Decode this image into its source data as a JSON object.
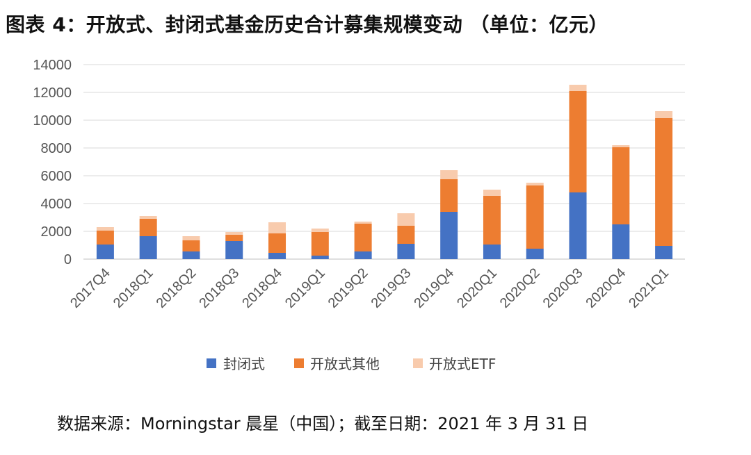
{
  "figure_title": "图表 4：开放式、封闭式基金历史合计募集规模变动 （单位：亿元）",
  "source_note": "数据来源：Morningstar 晨星（中国）；截至日期：2021 年 3 月 31 日",
  "chart_data": {
    "type": "bar",
    "stacked": true,
    "categories": [
      "2017Q4",
      "2018Q1",
      "2018Q2",
      "2018Q3",
      "2018Q4",
      "2019Q1",
      "2019Q2",
      "2019Q3",
      "2019Q4",
      "2020Q1",
      "2020Q2",
      "2020Q3",
      "2020Q4",
      "2021Q1"
    ],
    "series": [
      {
        "name": "封闭式",
        "color": "#4472C4",
        "values": [
          1050,
          1650,
          550,
          1300,
          450,
          250,
          550,
          1100,
          3400,
          1050,
          750,
          4800,
          2500,
          950
        ]
      },
      {
        "name": "开放式其他",
        "color": "#ED7D31",
        "values": [
          1000,
          1250,
          800,
          450,
          1400,
          1700,
          2000,
          1300,
          2350,
          3500,
          4550,
          7300,
          5550,
          9200
        ]
      },
      {
        "name": "开放式ETF",
        "color": "#F8CBAD",
        "values": [
          250,
          200,
          300,
          200,
          800,
          250,
          150,
          900,
          650,
          450,
          200,
          450,
          150,
          500
        ]
      }
    ],
    "title": "",
    "xlabel": "",
    "ylabel": "",
    "ylim": [
      0,
      14000
    ],
    "yticks": [
      "0",
      "2000",
      "4000",
      "6000",
      "8000",
      "10000",
      "12000",
      "14000"
    ],
    "grid": true,
    "legend_position": "bottom"
  }
}
